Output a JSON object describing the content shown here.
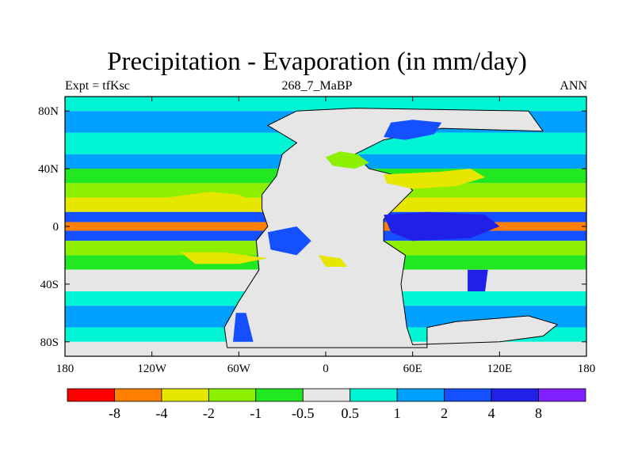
{
  "chart_data": {
    "type": "heatmap",
    "title": "Precipitation - Evaporation (in mm/day)",
    "subtitle": "268_7_MaBP",
    "left_label": "Expt = tfKsc",
    "right_label": "ANN",
    "xlim": [
      -180,
      180
    ],
    "ylim": [
      -90,
      90
    ],
    "x_ticks": [
      {
        "value": -180,
        "label": "180"
      },
      {
        "value": -120,
        "label": "120W"
      },
      {
        "value": -60,
        "label": "60W"
      },
      {
        "value": 0,
        "label": "0"
      },
      {
        "value": 60,
        "label": "60E"
      },
      {
        "value": 120,
        "label": "120E"
      },
      {
        "value": 180,
        "label": "180"
      }
    ],
    "y_ticks": [
      {
        "value": 80,
        "label": "80N"
      },
      {
        "value": 40,
        "label": "40N"
      },
      {
        "value": 0,
        "label": "0"
      },
      {
        "value": -40,
        "label": "40S"
      },
      {
        "value": -80,
        "label": "80S"
      }
    ],
    "colorbar": {
      "colors": [
        "#ff0000",
        "#ff8000",
        "#e6e600",
        "#8cf000",
        "#22e822",
        "#e6e6e6",
        "#00f5d5",
        "#00a0ff",
        "#1450ff",
        "#2020e8",
        "#8020ff"
      ],
      "labels": [
        "-8",
        "-4",
        "-2",
        "-1",
        "-0.5",
        "0.5",
        "1",
        "2",
        "4",
        "8"
      ]
    },
    "levels": [
      -8,
      -4,
      -2,
      -1,
      -0.5,
      0.5,
      1,
      2,
      4,
      8
    ],
    "zonal_bands": [
      {
        "lat_range": [
          80,
          90
        ],
        "class": 6
      },
      {
        "lat_range": [
          65,
          80
        ],
        "class": 7
      },
      {
        "lat_range": [
          50,
          65
        ],
        "class": 6
      },
      {
        "lat_range": [
          40,
          50
        ],
        "class": 7
      },
      {
        "lat_range": [
          30,
          40
        ],
        "class": 4
      },
      {
        "lat_range": [
          20,
          30
        ],
        "class": 3
      },
      {
        "lat_range": [
          10,
          20
        ],
        "class": 2
      },
      {
        "lat_range": [
          3,
          10
        ],
        "class": 8
      },
      {
        "lat_range": [
          -3,
          3
        ],
        "class": 1
      },
      {
        "lat_range": [
          -10,
          -3
        ],
        "class": 8
      },
      {
        "lat_range": [
          -20,
          -10
        ],
        "class": 3
      },
      {
        "lat_range": [
          -30,
          -20
        ],
        "class": 4
      },
      {
        "lat_range": [
          -45,
          -30
        ],
        "class": 5
      },
      {
        "lat_range": [
          -55,
          -45
        ],
        "class": 6
      },
      {
        "lat_range": [
          -70,
          -55
        ],
        "class": 7
      },
      {
        "lat_range": [
          -80,
          -70
        ],
        "class": 6
      },
      {
        "lat_range": [
          -90,
          -80
        ],
        "class": 5
      }
    ],
    "regions": [
      {
        "name": "pangaea-interior",
        "class": 5,
        "polygon": [
          [
            -20,
            58
          ],
          [
            -30,
            50
          ],
          [
            -34,
            35
          ],
          [
            -44,
            22
          ],
          [
            -44,
            12
          ],
          [
            -40,
            0
          ],
          [
            -48,
            -10
          ],
          [
            -46,
            -30
          ],
          [
            -60,
            -52
          ],
          [
            -70,
            -70
          ],
          [
            -68,
            -84
          ],
          [
            -10,
            -84
          ],
          [
            50,
            -84
          ],
          [
            70,
            -84
          ],
          [
            70,
            -70
          ],
          [
            90,
            -66
          ],
          [
            140,
            -62
          ],
          [
            160,
            -68
          ],
          [
            150,
            -76
          ],
          [
            120,
            -80
          ],
          [
            60,
            -82
          ],
          [
            56,
            -70
          ],
          [
            52,
            -40
          ],
          [
            55,
            -20
          ],
          [
            40,
            -10
          ],
          [
            40,
            5
          ],
          [
            50,
            15
          ],
          [
            60,
            25
          ],
          [
            50,
            35
          ],
          [
            30,
            40
          ],
          [
            20,
            50
          ],
          [
            40,
            60
          ],
          [
            80,
            68
          ],
          [
            150,
            66
          ],
          [
            140,
            80
          ],
          [
            20,
            82
          ],
          [
            -20,
            80
          ],
          [
            -40,
            70
          ]
        ]
      },
      {
        "name": "northern-wet",
        "class": 8,
        "polygon": [
          [
            45,
            72
          ],
          [
            60,
            74
          ],
          [
            80,
            72
          ],
          [
            75,
            64
          ],
          [
            55,
            60
          ],
          [
            40,
            62
          ]
        ]
      },
      {
        "name": "northern-dry",
        "class": 3,
        "polygon": [
          [
            0,
            48
          ],
          [
            10,
            52
          ],
          [
            22,
            50
          ],
          [
            30,
            44
          ],
          [
            20,
            40
          ],
          [
            5,
            42
          ]
        ]
      },
      {
        "name": "tethys-dry",
        "class": 2,
        "polygon": [
          [
            40,
            36
          ],
          [
            80,
            38
          ],
          [
            100,
            40
          ],
          [
            110,
            34
          ],
          [
            90,
            28
          ],
          [
            60,
            26
          ],
          [
            42,
            30
          ]
        ]
      },
      {
        "name": "tethys-wet",
        "class": 9,
        "polygon": [
          [
            40,
            8
          ],
          [
            70,
            10
          ],
          [
            110,
            8
          ],
          [
            120,
            0
          ],
          [
            100,
            -8
          ],
          [
            60,
            -10
          ],
          [
            45,
            -4
          ]
        ]
      },
      {
        "name": "east-wet",
        "class": 9,
        "polygon": [
          [
            98,
            -30
          ],
          [
            112,
            -30
          ],
          [
            110,
            -45
          ],
          [
            98,
            -45
          ]
        ]
      },
      {
        "name": "west-pangaea-wet",
        "class": 8,
        "polygon": [
          [
            -40,
            -4
          ],
          [
            -20,
            0
          ],
          [
            -10,
            -10
          ],
          [
            -20,
            -20
          ],
          [
            -38,
            -16
          ]
        ]
      },
      {
        "name": "southern-wet",
        "class": 8,
        "polygon": [
          [
            -62,
            -60
          ],
          [
            -55,
            -60
          ],
          [
            -50,
            -80
          ],
          [
            -64,
            -80
          ]
        ]
      },
      {
        "name": "pacific-dry-north",
        "class": 2,
        "polygon": [
          [
            -110,
            20
          ],
          [
            -80,
            24
          ],
          [
            -60,
            22
          ],
          [
            -45,
            15
          ],
          [
            -60,
            12
          ],
          [
            -95,
            12
          ]
        ]
      },
      {
        "name": "pacific-dry-south",
        "class": 2,
        "polygon": [
          [
            -100,
            -18
          ],
          [
            -70,
            -18
          ],
          [
            -40,
            -22
          ],
          [
            -60,
            -26
          ],
          [
            -90,
            -26
          ]
        ]
      },
      {
        "name": "sub-dry-southeast",
        "class": 2,
        "polygon": [
          [
            -5,
            -20
          ],
          [
            10,
            -22
          ],
          [
            15,
            -28
          ],
          [
            0,
            -28
          ]
        ]
      }
    ]
  }
}
